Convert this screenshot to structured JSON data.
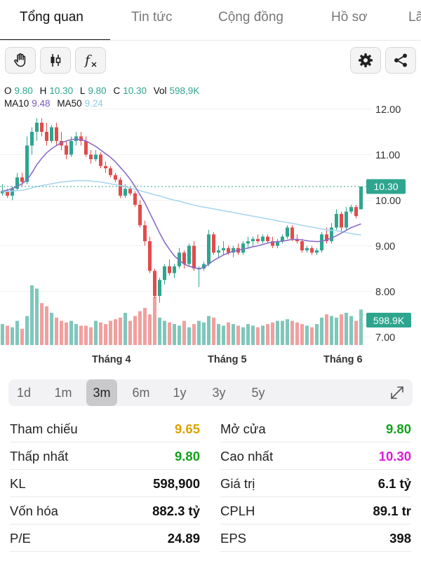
{
  "tabs": [
    {
      "label": "Tổng quan",
      "active": true
    },
    {
      "label": "Tin tức",
      "active": false
    },
    {
      "label": "Cộng đồng",
      "active": false
    },
    {
      "label": "Hồ sơ",
      "active": false
    },
    {
      "label": "Lãi",
      "active": false
    }
  ],
  "toolbar": {
    "left": [
      {
        "icon": "hand-icon",
        "name": "hand-tool-button"
      },
      {
        "icon": "candlestick-icon",
        "name": "chart-type-button"
      },
      {
        "icon": "function-icon",
        "name": "indicators-button",
        "glyph": "f"
      }
    ],
    "right": [
      {
        "icon": "gear-icon",
        "name": "settings-button"
      },
      {
        "icon": "share-icon",
        "name": "share-button"
      }
    ]
  },
  "ohlc": {
    "o_label": "O",
    "o_value": "9.80",
    "h_label": "H",
    "h_value": "10.30",
    "l_label": "L",
    "l_value": "9.80",
    "c_label": "C",
    "c_value": "10.30",
    "vol_label": "Vol",
    "vol_value": "598,9K"
  },
  "ma": {
    "ma10_label": "MA10",
    "ma10_value": "9.48",
    "ma50_label": "MA50",
    "ma50_value": "9.24"
  },
  "colors": {
    "up": "#2ea58f",
    "down": "#e34b4b",
    "vol_up": "#7fc7bb",
    "vol_down": "#f29f9f",
    "ma10": "#8a6cc7",
    "ma50": "#a9d6ee",
    "ma10_text": "#7b57c2",
    "ma50_text": "#8ccbe6",
    "ref": "#d9a400",
    "open": "#12a21a",
    "ceiling": "#d91bd6"
  },
  "chart_data": {
    "type": "candlestick",
    "y_ticks": [
      "12.00",
      "11.00",
      "10.00",
      "9.00",
      "8.00",
      "7.00"
    ],
    "ylim": [
      7.0,
      12.0
    ],
    "x_ticks": [
      "Tháng 4",
      "Tháng 5",
      "Tháng 6"
    ],
    "last_price_label": "10.30",
    "last_volume_label": "598.9K",
    "last_price": 10.3,
    "candles": [
      [
        10.15,
        10.35,
        10.1,
        10.2
      ],
      [
        10.2,
        10.25,
        10.05,
        10.1
      ],
      [
        10.1,
        10.3,
        10.0,
        10.25
      ],
      [
        10.25,
        10.6,
        10.2,
        10.5
      ],
      [
        10.5,
        10.6,
        10.3,
        10.4
      ],
      [
        10.4,
        11.4,
        10.35,
        11.2
      ],
      [
        11.2,
        11.6,
        11.0,
        11.5
      ],
      [
        11.5,
        11.8,
        11.3,
        11.7
      ],
      [
        11.7,
        11.8,
        11.4,
        11.5
      ],
      [
        11.5,
        11.7,
        11.2,
        11.3
      ],
      [
        11.3,
        11.65,
        11.25,
        11.6
      ],
      [
        11.6,
        11.7,
        11.2,
        11.3
      ],
      [
        11.3,
        11.5,
        11.1,
        11.2
      ],
      [
        11.2,
        11.3,
        10.9,
        11.0
      ],
      [
        11.0,
        11.4,
        10.95,
        11.3
      ],
      [
        11.3,
        11.5,
        11.2,
        11.4
      ],
      [
        11.4,
        11.5,
        11.2,
        11.3
      ],
      [
        11.3,
        11.4,
        10.95,
        11.0
      ],
      [
        11.0,
        11.1,
        10.8,
        10.9
      ],
      [
        10.9,
        11.1,
        10.85,
        11.0
      ],
      [
        11.0,
        11.05,
        10.7,
        10.75
      ],
      [
        10.75,
        10.85,
        10.6,
        10.7
      ],
      [
        10.7,
        10.75,
        10.5,
        10.55
      ],
      [
        10.55,
        10.6,
        10.4,
        10.45
      ],
      [
        10.45,
        10.5,
        10.05,
        10.1
      ],
      [
        10.1,
        10.35,
        10.05,
        10.25
      ],
      [
        10.25,
        10.3,
        10.1,
        10.15
      ],
      [
        10.15,
        10.2,
        9.85,
        9.9
      ],
      [
        9.9,
        10.0,
        9.4,
        9.45
      ],
      [
        9.45,
        9.55,
        9.0,
        9.1
      ],
      [
        9.1,
        9.2,
        8.4,
        8.45
      ],
      [
        8.45,
        8.5,
        7.85,
        7.9
      ],
      [
        7.9,
        8.3,
        7.75,
        8.25
      ],
      [
        8.25,
        8.6,
        8.15,
        8.55
      ],
      [
        8.55,
        8.7,
        8.35,
        8.4
      ],
      [
        8.4,
        8.6,
        8.3,
        8.55
      ],
      [
        8.55,
        8.95,
        8.5,
        8.85
      ],
      [
        8.85,
        8.9,
        8.5,
        8.6
      ],
      [
        8.6,
        9.05,
        8.55,
        9.0
      ],
      [
        9.0,
        9.1,
        8.45,
        8.5
      ],
      [
        8.5,
        8.55,
        8.1,
        8.5
      ],
      [
        8.5,
        8.65,
        8.45,
        8.6
      ],
      [
        8.6,
        9.35,
        8.55,
        9.25
      ],
      [
        9.25,
        9.3,
        8.8,
        8.85
      ],
      [
        8.85,
        9.0,
        8.75,
        8.9
      ],
      [
        8.9,
        9.1,
        8.8,
        8.95
      ],
      [
        8.95,
        9.0,
        8.8,
        8.85
      ],
      [
        8.85,
        9.0,
        8.75,
        8.95
      ],
      [
        8.95,
        9.05,
        8.8,
        8.85
      ],
      [
        8.85,
        9.1,
        8.8,
        9.05
      ],
      [
        9.05,
        9.2,
        8.95,
        9.1
      ],
      [
        9.1,
        9.2,
        9.0,
        9.15
      ],
      [
        9.15,
        9.25,
        9.05,
        9.1
      ],
      [
        9.1,
        9.25,
        9.05,
        9.2
      ],
      [
        9.2,
        9.25,
        9.05,
        9.1
      ],
      [
        9.1,
        9.2,
        8.95,
        9.0
      ],
      [
        9.0,
        9.15,
        8.95,
        9.1
      ],
      [
        9.1,
        9.25,
        9.05,
        9.2
      ],
      [
        9.2,
        9.45,
        9.15,
        9.4
      ],
      [
        9.4,
        9.45,
        9.1,
        9.15
      ],
      [
        9.15,
        9.25,
        9.05,
        9.1
      ],
      [
        9.1,
        9.15,
        8.85,
        8.9
      ],
      [
        8.9,
        9.0,
        8.85,
        8.95
      ],
      [
        8.95,
        9.0,
        8.8,
        8.85
      ],
      [
        8.85,
        8.95,
        8.8,
        8.9
      ],
      [
        8.9,
        9.3,
        8.85,
        9.25
      ],
      [
        9.25,
        9.4,
        9.05,
        9.1
      ],
      [
        9.1,
        9.5,
        9.05,
        9.4
      ],
      [
        9.4,
        9.8,
        9.35,
        9.7
      ],
      [
        9.7,
        9.75,
        9.3,
        9.4
      ],
      [
        9.4,
        9.85,
        9.35,
        9.75
      ],
      [
        9.75,
        9.9,
        9.7,
        9.85
      ],
      [
        9.85,
        9.9,
        9.6,
        9.65
      ],
      [
        9.8,
        10.3,
        9.8,
        10.3
      ]
    ],
    "volumes": [
      0.26,
      0.24,
      0.22,
      0.3,
      0.2,
      0.36,
      0.74,
      0.7,
      0.52,
      0.48,
      0.4,
      0.34,
      0.3,
      0.28,
      0.3,
      0.26,
      0.24,
      0.24,
      0.22,
      0.3,
      0.28,
      0.26,
      0.3,
      0.32,
      0.34,
      0.4,
      0.3,
      0.36,
      0.42,
      0.46,
      0.38,
      0.6,
      0.34,
      0.3,
      0.28,
      0.26,
      0.24,
      0.3,
      0.22,
      0.26,
      0.3,
      0.28,
      0.36,
      0.34,
      0.26,
      0.24,
      0.28,
      0.26,
      0.24,
      0.22,
      0.26,
      0.24,
      0.22,
      0.24,
      0.26,
      0.28,
      0.3,
      0.3,
      0.32,
      0.3,
      0.28,
      0.26,
      0.24,
      0.22,
      0.26,
      0.34,
      0.38,
      0.36,
      0.34,
      0.38,
      0.4,
      0.36,
      0.3,
      0.44
    ],
    "ma10": [
      10.2,
      10.22,
      10.26,
      10.3,
      10.36,
      10.45,
      10.6,
      10.78,
      10.92,
      11.04,
      11.13,
      11.2,
      11.26,
      11.3,
      11.33,
      11.34,
      11.33,
      11.3,
      11.24,
      11.18,
      11.1,
      11.02,
      10.94,
      10.84,
      10.72,
      10.6,
      10.46,
      10.3,
      10.12,
      9.94,
      9.72,
      9.5,
      9.28,
      9.08,
      8.92,
      8.78,
      8.68,
      8.6,
      8.55,
      8.52,
      8.5,
      8.52,
      8.6,
      8.68,
      8.74,
      8.8,
      8.84,
      8.88,
      8.9,
      8.93,
      8.95,
      8.98,
      9.0,
      9.03,
      9.06,
      9.08,
      9.09,
      9.1,
      9.12,
      9.14,
      9.14,
      9.13,
      9.11,
      9.1,
      9.09,
      9.1,
      9.13,
      9.17,
      9.22,
      9.28,
      9.34,
      9.4,
      9.44,
      9.48
    ],
    "ma50": [
      10.18,
      10.19,
      10.2,
      10.21,
      10.22,
      10.24,
      10.27,
      10.3,
      10.32,
      10.34,
      10.36,
      10.38,
      10.4,
      10.41,
      10.42,
      10.43,
      10.43,
      10.43,
      10.42,
      10.41,
      10.4,
      10.38,
      10.36,
      10.34,
      10.32,
      10.3,
      10.27,
      10.24,
      10.21,
      10.18,
      10.15,
      10.12,
      10.09,
      10.06,
      10.03,
      10.0,
      9.98,
      9.95,
      9.92,
      9.89,
      9.87,
      9.85,
      9.83,
      9.81,
      9.79,
      9.77,
      9.75,
      9.73,
      9.71,
      9.69,
      9.67,
      9.65,
      9.63,
      9.61,
      9.59,
      9.57,
      9.55,
      9.53,
      9.51,
      9.49,
      9.47,
      9.45,
      9.43,
      9.41,
      9.39,
      9.37,
      9.35,
      9.34,
      9.33,
      9.31,
      9.29,
      9.27,
      9.25,
      9.24
    ]
  },
  "ranges": [
    {
      "label": "1d",
      "active": false
    },
    {
      "label": "1m",
      "active": false
    },
    {
      "label": "3m",
      "active": true
    },
    {
      "label": "6m",
      "active": false
    },
    {
      "label": "1y",
      "active": false
    },
    {
      "label": "3y",
      "active": false
    },
    {
      "label": "5y",
      "active": false
    }
  ],
  "stats_left": [
    {
      "label": "Tham chiếu",
      "value": "9.65",
      "color": "#d9a400"
    },
    {
      "label": "Thấp nhất",
      "value": "9.80",
      "color": "#12a21a"
    },
    {
      "label": "KL",
      "value": "598,900",
      "color": "#111111"
    },
    {
      "label": "Vốn hóa",
      "value": "882.3 tỷ",
      "color": "#111111"
    },
    {
      "label": "P/E",
      "value": "24.89",
      "color": "#111111"
    }
  ],
  "stats_right": [
    {
      "label": "Mở cửa",
      "value": "9.80",
      "color": "#12a21a"
    },
    {
      "label": "Cao nhất",
      "value": "10.30",
      "color": "#d91bd6"
    },
    {
      "label": "Giá trị",
      "value": "6.1 tỷ",
      "color": "#111111"
    },
    {
      "label": "CPLH",
      "value": "89.1 tr",
      "color": "#111111"
    },
    {
      "label": "EPS",
      "value": "398",
      "color": "#111111"
    }
  ]
}
